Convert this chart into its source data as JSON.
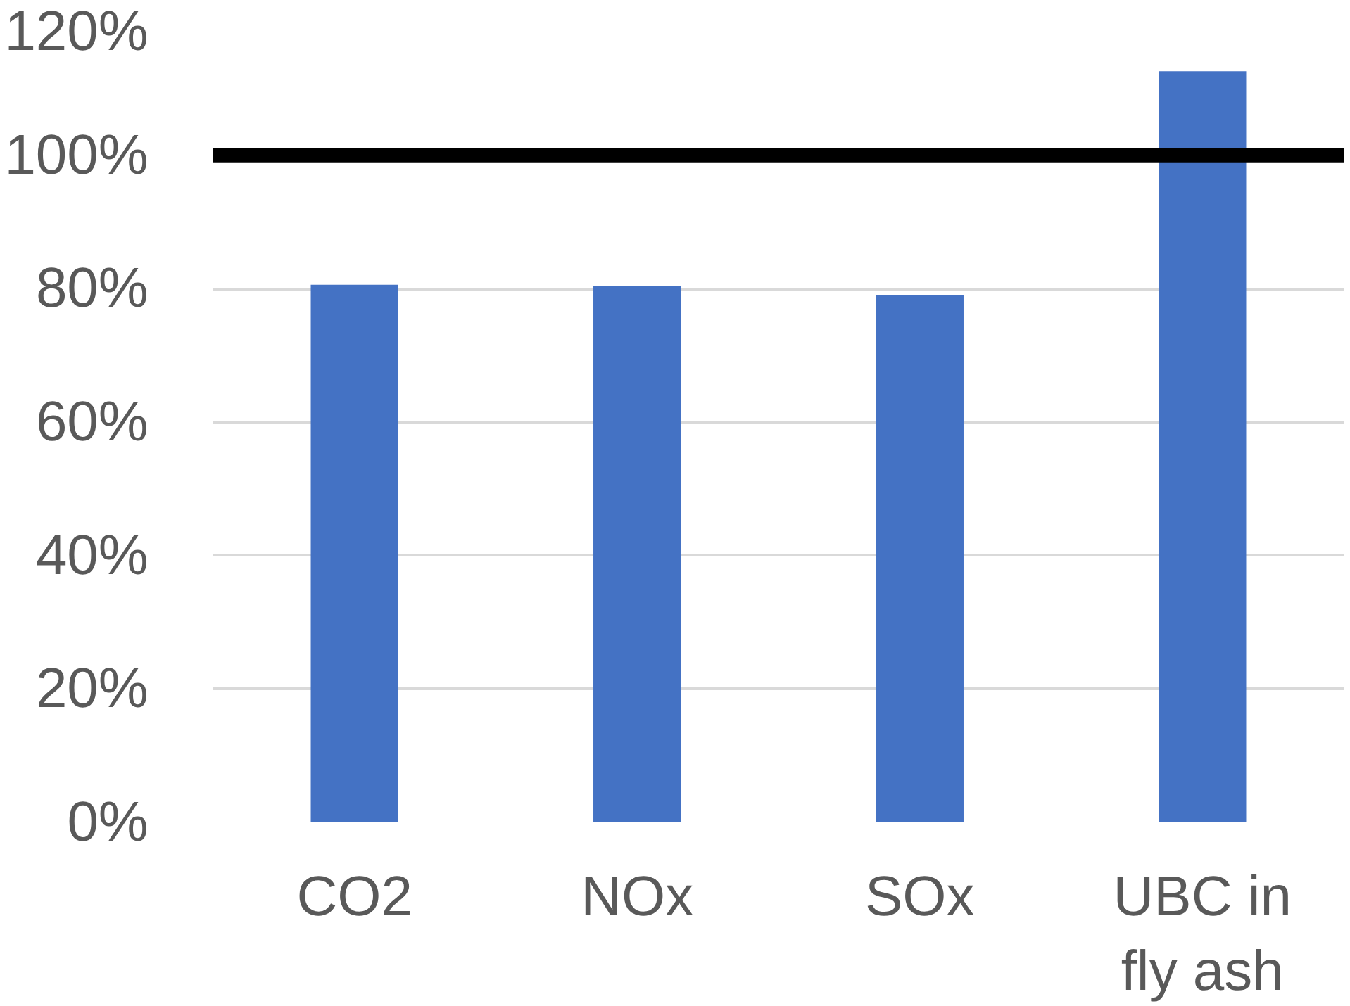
{
  "chart_data": {
    "type": "bar",
    "categories": [
      "CO2",
      "NOx",
      "SOx",
      "UBC in fly ash"
    ],
    "values": [
      80.6,
      80.4,
      79.0,
      112.6
    ],
    "color": "#4472c4",
    "ylim": [
      0,
      120
    ],
    "yticks": [
      {
        "value": 0,
        "label": "0%"
      },
      {
        "value": 20,
        "label": "20%"
      },
      {
        "value": 40,
        "label": "40%"
      },
      {
        "value": 60,
        "label": "60%"
      },
      {
        "value": 80,
        "label": "80%"
      },
      {
        "value": 100,
        "label": "100%"
      },
      {
        "value": 120,
        "label": "120%"
      }
    ],
    "grid": "y",
    "ref_lines": [
      {
        "axis": "y",
        "value": 100,
        "color": "#000000",
        "line_style": "solid"
      }
    ]
  }
}
